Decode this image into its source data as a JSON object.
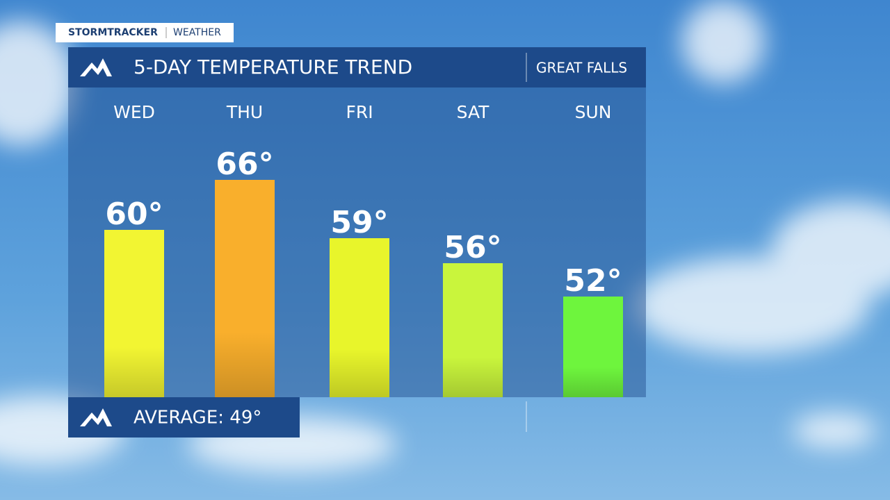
{
  "brand": "STORMTRACKER",
  "brand_section": "WEATHER",
  "chart_data": {
    "type": "bar",
    "title": "5-DAY TEMPERATURE TREND",
    "subtitle": "GREAT FALLS",
    "categories": [
      "WED",
      "THU",
      "FRI",
      "SAT",
      "SUN"
    ],
    "values": [
      60,
      66,
      59,
      56,
      52
    ],
    "value_labels": [
      "60°",
      "66°",
      "59°",
      "56°",
      "52°"
    ],
    "colors": [
      "#f2f532",
      "#f9af2c",
      "#e8f52b",
      "#c9f53c",
      "#6ef53d"
    ]
  },
  "footer": "AVERAGE: 49°"
}
